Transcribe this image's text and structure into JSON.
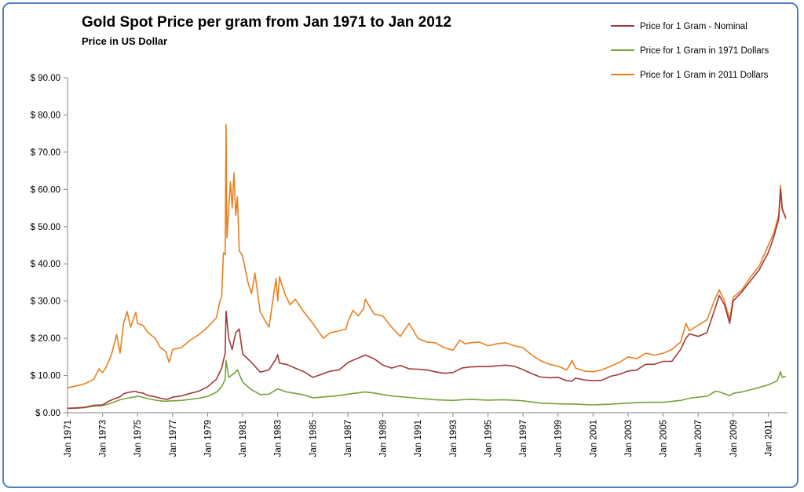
{
  "chart_data": {
    "type": "line",
    "title": "Gold Spot Price per gram from Jan 1971 to Jan 2012",
    "subtitle": "Price in US Dollar",
    "ylim": [
      0,
      90
    ],
    "xlim": [
      1971.0,
      2012.1
    ],
    "y_ticks": [
      "$ 0.00",
      "$ 10.00",
      "$ 20.00",
      "$ 30.00",
      "$ 40.00",
      "$ 50.00",
      "$ 60.00",
      "$ 70.00",
      "$ 80.00",
      "$ 90.00"
    ],
    "x_ticks": [
      "Jan 1971",
      "Jan 1973",
      "Jan 1975",
      "Jan 1977",
      "Jan 1979",
      "Jan 1981",
      "Jan 1983",
      "Jan 1985",
      "Jan 1987",
      "Jan 1989",
      "Jan 1991",
      "Jan 1993",
      "Jan 1995",
      "Jan 1997",
      "Jan 1999",
      "Jan 2001",
      "Jan 2003",
      "Jan 2005",
      "Jan 2007",
      "Jan 2009",
      "Jan 2011"
    ],
    "legend_position": "top-right",
    "grid": false,
    "series": [
      {
        "name": "Price for 1 Gram - Nominal",
        "color": "#a0393a",
        "x": [
          1971.0,
          1971.5,
          1972.0,
          1972.5,
          1973.0,
          1973.3,
          1973.6,
          1974.0,
          1974.2,
          1974.5,
          1974.9,
          1975.0,
          1975.3,
          1975.6,
          1976.0,
          1976.4,
          1976.7,
          1977.0,
          1977.5,
          1978.0,
          1978.5,
          1979.0,
          1979.5,
          1979.8,
          1980.0,
          1980.05,
          1980.2,
          1980.4,
          1980.6,
          1980.8,
          1981.0,
          1981.5,
          1982.0,
          1982.5,
          1982.9,
          1983.0,
          1983.1,
          1983.5,
          1984.0,
          1984.5,
          1985.0,
          1985.5,
          1986.0,
          1986.5,
          1986.9,
          1987.0,
          1987.5,
          1987.9,
          1988.0,
          1988.5,
          1989.0,
          1989.5,
          1990.0,
          1990.5,
          1991.0,
          1991.5,
          1992.0,
          1992.5,
          1993.0,
          1993.5,
          1994.0,
          1994.5,
          1995.0,
          1995.5,
          1996.0,
          1996.5,
          1997.0,
          1997.5,
          1998.0,
          1998.5,
          1999.0,
          1999.5,
          1999.8,
          2000.0,
          2000.5,
          2001.0,
          2001.5,
          2002.0,
          2002.5,
          2003.0,
          2003.5,
          2004.0,
          2004.5,
          2005.0,
          2005.5,
          2006.0,
          2006.3,
          2006.5,
          2007.0,
          2007.5,
          2008.0,
          2008.2,
          2008.5,
          2008.8,
          2009.0,
          2009.5,
          2010.0,
          2010.5,
          2011.0,
          2011.3,
          2011.6,
          2011.7,
          2011.8,
          2012.0
        ],
        "values": [
          1.2,
          1.3,
          1.5,
          2.0,
          2.1,
          3.0,
          3.6,
          4.3,
          5.1,
          5.5,
          5.8,
          5.5,
          5.3,
          4.6,
          4.3,
          3.8,
          3.6,
          4.2,
          4.5,
          5.2,
          5.8,
          7.0,
          9.0,
          12.0,
          16.0,
          27.3,
          20.0,
          17.0,
          21.5,
          22.5,
          15.8,
          13.5,
          10.9,
          11.5,
          14.5,
          15.6,
          13.3,
          13.0,
          12.0,
          11.0,
          9.5,
          10.3,
          11.2,
          11.5,
          13.0,
          13.5,
          14.5,
          15.3,
          15.5,
          14.5,
          12.8,
          12.0,
          12.7,
          11.8,
          11.7,
          11.5,
          11.0,
          10.6,
          10.8,
          12.0,
          12.3,
          12.4,
          12.4,
          12.6,
          12.8,
          12.5,
          11.6,
          10.5,
          9.6,
          9.4,
          9.5,
          8.6,
          8.5,
          9.3,
          8.8,
          8.6,
          8.7,
          9.8,
          10.3,
          11.2,
          11.5,
          13.0,
          13.0,
          13.8,
          13.8,
          17.0,
          20.0,
          21.2,
          20.5,
          21.5,
          28.5,
          31.5,
          29.0,
          24.0,
          30.0,
          32.5,
          35.5,
          38.5,
          43.0,
          47.0,
          52.0,
          60.0,
          54.5,
          52.5
        ]
      },
      {
        "name": "Price for 1 Gram in 1971 Dollars",
        "color": "#77a03a",
        "x": [
          1971.0,
          1971.5,
          1972.0,
          1972.5,
          1973.0,
          1973.5,
          1974.0,
          1974.5,
          1974.9,
          1975.0,
          1975.5,
          1976.0,
          1976.5,
          1977.0,
          1977.5,
          1978.0,
          1978.5,
          1979.0,
          1979.5,
          1979.8,
          1980.0,
          1980.05,
          1980.2,
          1980.5,
          1980.7,
          1981.0,
          1981.5,
          1982.0,
          1982.5,
          1983.0,
          1983.5,
          1984.0,
          1984.5,
          1985.0,
          1985.5,
          1986.0,
          1986.5,
          1987.0,
          1987.5,
          1988.0,
          1988.5,
          1989.0,
          1989.5,
          1990.0,
          1990.5,
          1991.0,
          1991.5,
          1992.0,
          1993.0,
          1993.5,
          1994.0,
          1995.0,
          1996.0,
          1997.0,
          1998.0,
          1999.0,
          2000.0,
          2001.0,
          2002.0,
          2003.0,
          2004.0,
          2005.0,
          2006.0,
          2006.5,
          2007.0,
          2007.5,
          2008.0,
          2008.2,
          2008.8,
          2009.0,
          2009.5,
          2010.0,
          2010.5,
          2011.0,
          2011.5,
          2011.7,
          2011.8,
          2012.0
        ],
        "values": [
          1.2,
          1.2,
          1.4,
          1.8,
          1.9,
          2.6,
          3.5,
          4.0,
          4.3,
          4.5,
          3.9,
          3.4,
          3.1,
          3.2,
          3.3,
          3.6,
          3.9,
          4.4,
          5.5,
          7.0,
          9.0,
          14.0,
          9.5,
          10.5,
          11.5,
          8.2,
          6.2,
          4.9,
          5.0,
          6.4,
          5.6,
          5.2,
          4.8,
          4.0,
          4.2,
          4.4,
          4.6,
          5.0,
          5.3,
          5.6,
          5.3,
          4.9,
          4.5,
          4.3,
          4.1,
          3.9,
          3.7,
          3.5,
          3.3,
          3.5,
          3.6,
          3.4,
          3.5,
          3.2,
          2.6,
          2.4,
          2.3,
          2.1,
          2.3,
          2.6,
          2.8,
          2.8,
          3.3,
          3.9,
          4.2,
          4.4,
          5.8,
          5.6,
          4.6,
          5.2,
          5.6,
          6.2,
          6.8,
          7.5,
          8.5,
          11.0,
          9.5,
          9.8
        ]
      },
      {
        "name": "Price for 1 Gram in 2011 Dollars",
        "color": "#e8801f",
        "x": [
          1971.0,
          1971.5,
          1972.0,
          1972.5,
          1972.8,
          1973.0,
          1973.2,
          1973.5,
          1973.8,
          1974.0,
          1974.2,
          1974.4,
          1974.6,
          1974.9,
          1975.0,
          1975.3,
          1975.6,
          1976.0,
          1976.3,
          1976.6,
          1976.8,
          1977.0,
          1977.5,
          1978.0,
          1978.5,
          1979.0,
          1979.5,
          1979.7,
          1979.8,
          1979.9,
          1980.0,
          1980.05,
          1980.1,
          1980.3,
          1980.4,
          1980.5,
          1980.6,
          1980.7,
          1980.8,
          1981.0,
          1981.3,
          1981.5,
          1981.7,
          1982.0,
          1982.5,
          1982.9,
          1983.0,
          1983.1,
          1983.4,
          1983.7,
          1984.0,
          1984.5,
          1985.0,
          1985.3,
          1985.6,
          1986.0,
          1986.5,
          1986.9,
          1987.0,
          1987.3,
          1987.6,
          1987.9,
          1988.0,
          1988.5,
          1989.0,
          1989.5,
          1990.0,
          1990.5,
          1991.0,
          1991.5,
          1992.0,
          1992.5,
          1993.0,
          1993.4,
          1993.7,
          1994.0,
          1994.5,
          1995.0,
          1995.5,
          1996.0,
          1996.5,
          1997.0,
          1997.5,
          1998.0,
          1998.5,
          1999.0,
          1999.5,
          1999.8,
          2000.0,
          2000.5,
          2001.0,
          2001.5,
          2002.0,
          2002.5,
          2003.0,
          2003.5,
          2004.0,
          2004.5,
          2005.0,
          2005.5,
          2006.0,
          2006.3,
          2006.5,
          2007.0,
          2007.5,
          2008.0,
          2008.2,
          2008.5,
          2008.8,
          2009.0,
          2009.5,
          2010.0,
          2010.5,
          2011.0,
          2011.3,
          2011.6,
          2011.7,
          2011.8,
          2012.0
        ],
        "values": [
          6.7,
          7.2,
          7.8,
          9.0,
          11.8,
          10.8,
          12.2,
          15.5,
          21.0,
          16.0,
          24.0,
          27.2,
          23.0,
          27.0,
          24.0,
          23.5,
          21.5,
          20.0,
          17.5,
          16.5,
          13.5,
          17.0,
          17.5,
          19.5,
          21.0,
          23.0,
          25.5,
          30.0,
          31.0,
          43.0,
          42.5,
          77.5,
          47.0,
          62.0,
          55.0,
          64.5,
          53.0,
          58.0,
          43.5,
          42.0,
          35.0,
          32.0,
          37.5,
          27.0,
          23.0,
          36.0,
          30.0,
          36.5,
          32.0,
          29.0,
          30.5,
          27.0,
          24.0,
          22.0,
          20.0,
          21.5,
          22.0,
          22.5,
          24.5,
          27.5,
          26.0,
          28.0,
          30.5,
          26.5,
          26.0,
          23.0,
          20.5,
          24.0,
          20.0,
          19.0,
          18.8,
          17.5,
          16.8,
          19.5,
          18.5,
          18.8,
          19.0,
          18.0,
          18.5,
          18.8,
          18.0,
          17.5,
          15.5,
          14.0,
          13.0,
          12.5,
          11.5,
          14.0,
          12.0,
          11.2,
          11.0,
          11.5,
          12.5,
          13.5,
          15.0,
          14.5,
          16.0,
          15.5,
          16.0,
          17.0,
          19.0,
          24.0,
          22.0,
          23.5,
          25.0,
          31.0,
          33.0,
          30.0,
          25.0,
          31.0,
          33.0,
          36.5,
          39.5,
          45.0,
          48.0,
          53.0,
          61.0,
          55.0,
          52.0
        ]
      }
    ]
  }
}
